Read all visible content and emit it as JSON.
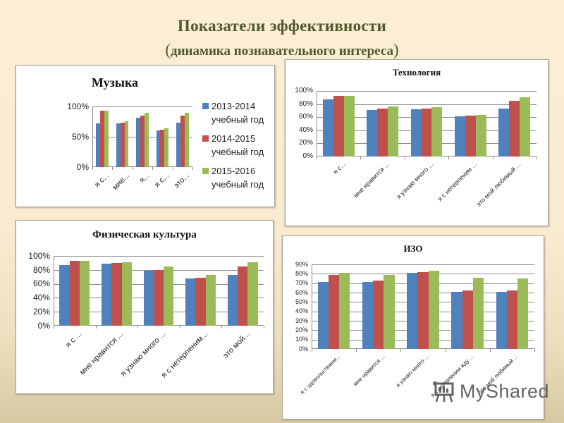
{
  "header": {
    "title": "Показатели эффективности",
    "subtitle_open": "(",
    "subtitle": "динамика познавательного интереса",
    "subtitle_close": ")"
  },
  "colors": {
    "series_2013": "#4F81BD",
    "series_2014": "#C0504D",
    "series_2015": "#9BBB59",
    "title": "#4f5a2a"
  },
  "legend": [
    {
      "year": "2013-2014",
      "suffix": "учебный год",
      "color": "#4F81BD"
    },
    {
      "year": "2014-2015",
      "suffix": "учебный год",
      "color": "#C0504D"
    },
    {
      "year": "2015-2016",
      "suffix": "учебный год",
      "color": "#9BBB59"
    }
  ],
  "watermark": {
    "text": "MyShared"
  },
  "chart_data": [
    {
      "id": "music",
      "type": "bar",
      "title": "Музыка",
      "xlabel": "",
      "ylabel": "",
      "ylim": [
        0,
        100
      ],
      "yticks": [
        "100%",
        "50%",
        "0%"
      ],
      "categories": [
        "я с...",
        "мне...",
        "я...",
        "я с...",
        "это..."
      ],
      "series": [
        {
          "name": "2013-2014 учебный год",
          "values": [
            72,
            72,
            81,
            61,
            73
          ]
        },
        {
          "name": "2014-2015 учебный год",
          "values": [
            93,
            73,
            85,
            62,
            85
          ]
        },
        {
          "name": "2015-2016 учебный год",
          "values": [
            93,
            76,
            90,
            64,
            90
          ]
        }
      ],
      "legend_position": "right",
      "grid": true
    },
    {
      "id": "technology",
      "type": "bar",
      "title": "Технология",
      "xlabel": "",
      "ylabel": "",
      "ylim": [
        0,
        100
      ],
      "yticks": [
        "100%",
        "80%",
        "60%",
        "40%",
        "20%",
        "0%"
      ],
      "categories": [
        "я с...",
        "мне нравится ...",
        "я узнаю много ...",
        "я с нетерпеним ...",
        "это мой любимый ..."
      ],
      "series": [
        {
          "name": "2013-2014 учебный год",
          "values": [
            87,
            71,
            72,
            61,
            73
          ]
        },
        {
          "name": "2014-2015 учебный год",
          "values": [
            92,
            73,
            73,
            62,
            85
          ]
        },
        {
          "name": "2015-2016 учебный год",
          "values": [
            93,
            76,
            75,
            63,
            90
          ]
        }
      ],
      "legend_position": "none",
      "grid": true
    },
    {
      "id": "physical_culture",
      "type": "bar",
      "title": "Физическая культура",
      "xlabel": "",
      "ylabel": "",
      "ylim": [
        0,
        100
      ],
      "yticks": [
        "100%",
        "80%",
        "60%",
        "40%",
        "20%",
        "0%"
      ],
      "categories": [
        "я с ...",
        "мне нравится ...",
        "я узнаю много ...",
        "я с нетерпеним...",
        "это мой..."
      ],
      "series": [
        {
          "name": "2013-2014 учебный год",
          "values": [
            87,
            89,
            79,
            68,
            73
          ]
        },
        {
          "name": "2014-2015 учебный год",
          "values": [
            93,
            90,
            80,
            69,
            85
          ]
        },
        {
          "name": "2015-2016 учебный год",
          "values": [
            93,
            91,
            85,
            73,
            91
          ]
        }
      ],
      "legend_position": "none",
      "grid": true
    },
    {
      "id": "iso",
      "type": "bar",
      "title": "ИЗО",
      "xlabel": "",
      "ylabel": "",
      "ylim": [
        0,
        90
      ],
      "yticks": [
        "90%",
        "80%",
        "70%",
        "60%",
        "50%",
        "40%",
        "30%",
        "20%",
        "10%",
        "0%"
      ],
      "categories": [
        "я с удовольствием...",
        "мне нравится ...",
        "я узнаю много ...",
        "я с нетерпеним жду ...",
        "это мой любимый ..."
      ],
      "series": [
        {
          "name": "2013-2014 учебный год",
          "values": [
            71,
            71,
            81,
            61,
            61
          ]
        },
        {
          "name": "2014-2015 учебный год",
          "values": [
            79,
            73,
            82,
            62,
            62
          ]
        },
        {
          "name": "2015-2016 учебный год",
          "values": [
            81,
            79,
            83,
            76,
            75
          ]
        }
      ],
      "legend_position": "none",
      "grid": true
    }
  ]
}
